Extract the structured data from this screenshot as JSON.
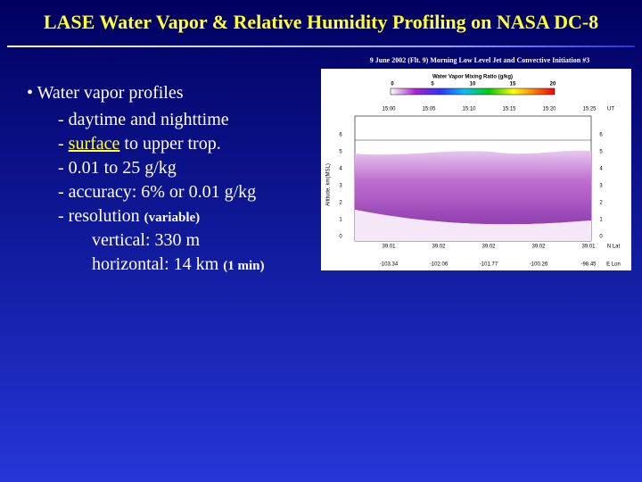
{
  "title": "LASE Water Vapor & Relative Humidity Profiling on NASA DC-8",
  "bullets": {
    "heading": "• Water vapor profiles",
    "lines": [
      [
        "- daytime and nighttime"
      ],
      [
        "- ",
        "surface",
        " to upper trop."
      ],
      [
        "- 0.01 to 25 g/kg"
      ],
      [
        "- accuracy: 6% or 0.01 g/kg"
      ],
      [
        "- resolution ",
        "(variable)"
      ]
    ],
    "sublines": [
      [
        "vertical: 330 m"
      ],
      [
        "horizontal: 14 km ",
        "(1 min)"
      ]
    ]
  },
  "figure": {
    "caption": "9 June 2002 (Flt. 9) Morning Low Level Jet and Convective Initiation #3",
    "colorbar_title": "Water Vapor Mixing Ratio (g/kg)",
    "colorbar_ticks": [
      "0",
      "5",
      "10",
      "15",
      "20"
    ],
    "times": [
      "15:00",
      "15:05",
      "15:10",
      "15:15",
      "15:20",
      "15:25"
    ],
    "time_unit": "UT",
    "y_label": "Altitude, km(MSL)",
    "y_ticks": [
      "0",
      "1",
      "2",
      "3",
      "4",
      "5",
      "6"
    ],
    "lats": [
      "39.01",
      "39.02",
      "39.02",
      "39.02",
      "39.01"
    ],
    "lat_unit": "N Lat",
    "lons": [
      "-103.34",
      "-102.06",
      "-101.77",
      "-100.26",
      "-98.45"
    ],
    "lon_unit": "E Lon"
  }
}
